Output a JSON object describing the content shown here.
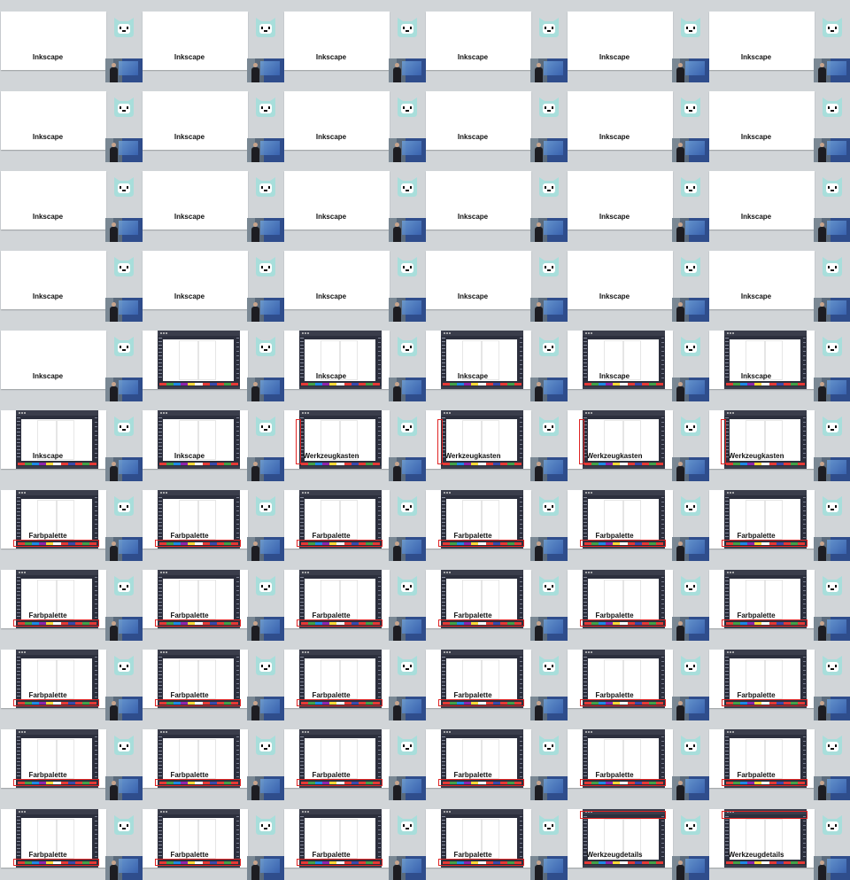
{
  "contact_sheet": {
    "columns": 6,
    "rows": 11,
    "frames": [
      {
        "row": 0,
        "col": 0,
        "caption": "Inkscape",
        "mode": "title"
      },
      {
        "row": 0,
        "col": 1,
        "caption": "Inkscape",
        "mode": "title"
      },
      {
        "row": 0,
        "col": 2,
        "caption": "Inkscape",
        "mode": "title"
      },
      {
        "row": 0,
        "col": 3,
        "caption": "Inkscape",
        "mode": "title"
      },
      {
        "row": 0,
        "col": 4,
        "caption": "Inkscape",
        "mode": "title"
      },
      {
        "row": 0,
        "col": 5,
        "caption": "Inkscape",
        "mode": "title"
      },
      {
        "row": 1,
        "col": 0,
        "caption": "Inkscape",
        "mode": "title"
      },
      {
        "row": 1,
        "col": 1,
        "caption": "Inkscape",
        "mode": "title"
      },
      {
        "row": 1,
        "col": 2,
        "caption": "Inkscape",
        "mode": "title"
      },
      {
        "row": 1,
        "col": 3,
        "caption": "Inkscape",
        "mode": "title"
      },
      {
        "row": 1,
        "col": 4,
        "caption": "Inkscape",
        "mode": "title"
      },
      {
        "row": 1,
        "col": 5,
        "caption": "Inkscape",
        "mode": "title"
      },
      {
        "row": 2,
        "col": 0,
        "caption": "Inkscape",
        "mode": "title"
      },
      {
        "row": 2,
        "col": 1,
        "caption": "Inkscape",
        "mode": "title"
      },
      {
        "row": 2,
        "col": 2,
        "caption": "Inkscape",
        "mode": "title"
      },
      {
        "row": 2,
        "col": 3,
        "caption": "Inkscape",
        "mode": "title"
      },
      {
        "row": 2,
        "col": 4,
        "caption": "Inkscape",
        "mode": "title"
      },
      {
        "row": 2,
        "col": 5,
        "caption": "Inkscape",
        "mode": "title"
      },
      {
        "row": 3,
        "col": 0,
        "caption": "Inkscape",
        "mode": "title"
      },
      {
        "row": 3,
        "col": 1,
        "caption": "Inkscape",
        "mode": "title"
      },
      {
        "row": 3,
        "col": 2,
        "caption": "Inkscape",
        "mode": "title"
      },
      {
        "row": 3,
        "col": 3,
        "caption": "Inkscape",
        "mode": "title"
      },
      {
        "row": 3,
        "col": 4,
        "caption": "Inkscape",
        "mode": "title"
      },
      {
        "row": 3,
        "col": 5,
        "caption": "Inkscape",
        "mode": "title"
      },
      {
        "row": 4,
        "col": 0,
        "caption": "Inkscape",
        "mode": "title"
      },
      {
        "row": 4,
        "col": 1,
        "caption": "",
        "mode": "ui"
      },
      {
        "row": 4,
        "col": 2,
        "caption": "Inkscape",
        "mode": "ui"
      },
      {
        "row": 4,
        "col": 3,
        "caption": "Inkscape",
        "mode": "ui"
      },
      {
        "row": 4,
        "col": 4,
        "caption": "Inkscape",
        "mode": "ui"
      },
      {
        "row": 4,
        "col": 5,
        "caption": "Inkscape",
        "mode": "ui"
      },
      {
        "row": 5,
        "col": 0,
        "caption": "Inkscape",
        "mode": "ui"
      },
      {
        "row": 5,
        "col": 1,
        "caption": "Inkscape",
        "mode": "ui"
      },
      {
        "row": 5,
        "col": 2,
        "caption": "Werkzeugkasten",
        "mode": "ui",
        "highlight": "toolbox"
      },
      {
        "row": 5,
        "col": 3,
        "caption": "Werkzeugkasten",
        "mode": "ui",
        "highlight": "toolbox"
      },
      {
        "row": 5,
        "col": 4,
        "caption": "Werkzeugkasten",
        "mode": "ui",
        "highlight": "toolbox"
      },
      {
        "row": 5,
        "col": 5,
        "caption": "Werkzeugkasten",
        "mode": "ui",
        "highlight": "toolbox"
      },
      {
        "row": 6,
        "col": 0,
        "caption": "Farbpalette",
        "mode": "ui",
        "highlight": "palette"
      },
      {
        "row": 6,
        "col": 1,
        "caption": "Farbpalette",
        "mode": "ui",
        "highlight": "palette"
      },
      {
        "row": 6,
        "col": 2,
        "caption": "Farbpalette",
        "mode": "ui",
        "highlight": "palette"
      },
      {
        "row": 6,
        "col": 3,
        "caption": "Farbpalette",
        "mode": "ui",
        "highlight": "palette"
      },
      {
        "row": 6,
        "col": 4,
        "caption": "Farbpalette",
        "mode": "ui",
        "highlight": "palette"
      },
      {
        "row": 6,
        "col": 5,
        "caption": "Farbpalette",
        "mode": "ui",
        "highlight": "palette"
      },
      {
        "row": 7,
        "col": 0,
        "caption": "Farbpalette",
        "mode": "ui",
        "highlight": "palette"
      },
      {
        "row": 7,
        "col": 1,
        "caption": "Farbpalette",
        "mode": "ui",
        "highlight": "palette"
      },
      {
        "row": 7,
        "col": 2,
        "caption": "Farbpalette",
        "mode": "ui",
        "highlight": "palette"
      },
      {
        "row": 7,
        "col": 3,
        "caption": "Farbpalette",
        "mode": "ui",
        "highlight": "palette"
      },
      {
        "row": 7,
        "col": 4,
        "caption": "Farbpalette",
        "mode": "ui",
        "highlight": "palette"
      },
      {
        "row": 7,
        "col": 5,
        "caption": "Farbpalette",
        "mode": "ui",
        "highlight": "palette"
      },
      {
        "row": 8,
        "col": 0,
        "caption": "Farbpalette",
        "mode": "ui",
        "highlight": "palette"
      },
      {
        "row": 8,
        "col": 1,
        "caption": "Farbpalette",
        "mode": "ui",
        "highlight": "palette"
      },
      {
        "row": 8,
        "col": 2,
        "caption": "Farbpalette",
        "mode": "ui",
        "highlight": "palette"
      },
      {
        "row": 8,
        "col": 3,
        "caption": "Farbpalette",
        "mode": "ui",
        "highlight": "palette"
      },
      {
        "row": 8,
        "col": 4,
        "caption": "Farbpalette",
        "mode": "ui",
        "highlight": "palette"
      },
      {
        "row": 8,
        "col": 5,
        "caption": "Farbpalette",
        "mode": "ui",
        "highlight": "palette"
      },
      {
        "row": 9,
        "col": 0,
        "caption": "Farbpalette",
        "mode": "ui",
        "highlight": "palette"
      },
      {
        "row": 9,
        "col": 1,
        "caption": "Farbpalette",
        "mode": "ui",
        "highlight": "palette"
      },
      {
        "row": 9,
        "col": 2,
        "caption": "Farbpalette",
        "mode": "ui",
        "highlight": "palette"
      },
      {
        "row": 9,
        "col": 3,
        "caption": "Farbpalette",
        "mode": "ui",
        "highlight": "palette"
      },
      {
        "row": 9,
        "col": 4,
        "caption": "Farbpalette",
        "mode": "ui",
        "highlight": "palette"
      },
      {
        "row": 9,
        "col": 5,
        "caption": "Farbpalette",
        "mode": "ui",
        "highlight": "palette"
      },
      {
        "row": 10,
        "col": 0,
        "caption": "Farbpalette",
        "mode": "ui",
        "highlight": "palette"
      },
      {
        "row": 10,
        "col": 1,
        "caption": "Farbpalette",
        "mode": "ui",
        "highlight": "palette"
      },
      {
        "row": 10,
        "col": 2,
        "caption": "Farbpalette",
        "mode": "ui",
        "highlight": "palette"
      },
      {
        "row": 10,
        "col": 3,
        "caption": "Farbpalette",
        "mode": "ui",
        "highlight": "palette"
      },
      {
        "row": 10,
        "col": 4,
        "caption": "Werkzeugdetails",
        "mode": "ui",
        "highlight": "details"
      },
      {
        "row": 10,
        "col": 5,
        "caption": "Werkzeugdetails",
        "mode": "ui",
        "highlight": "details"
      }
    ]
  },
  "colors": {
    "background": "#d1d5d8",
    "slide": "#ffffff",
    "ui_dark": "#2c2f3d",
    "highlight": "#e02424",
    "logo": "#a8dedb",
    "palette_swatches": [
      "#e53935",
      "#43a047",
      "#1e88e5",
      "#8e24aa",
      "#fdd835",
      "#ffffff",
      "#e53935",
      "#3949ab",
      "#e53935",
      "#43a047",
      "#e53935"
    ]
  },
  "icons": {
    "logo": "cat-face-icon",
    "camera": "presenter-webcam-thumbnail"
  }
}
